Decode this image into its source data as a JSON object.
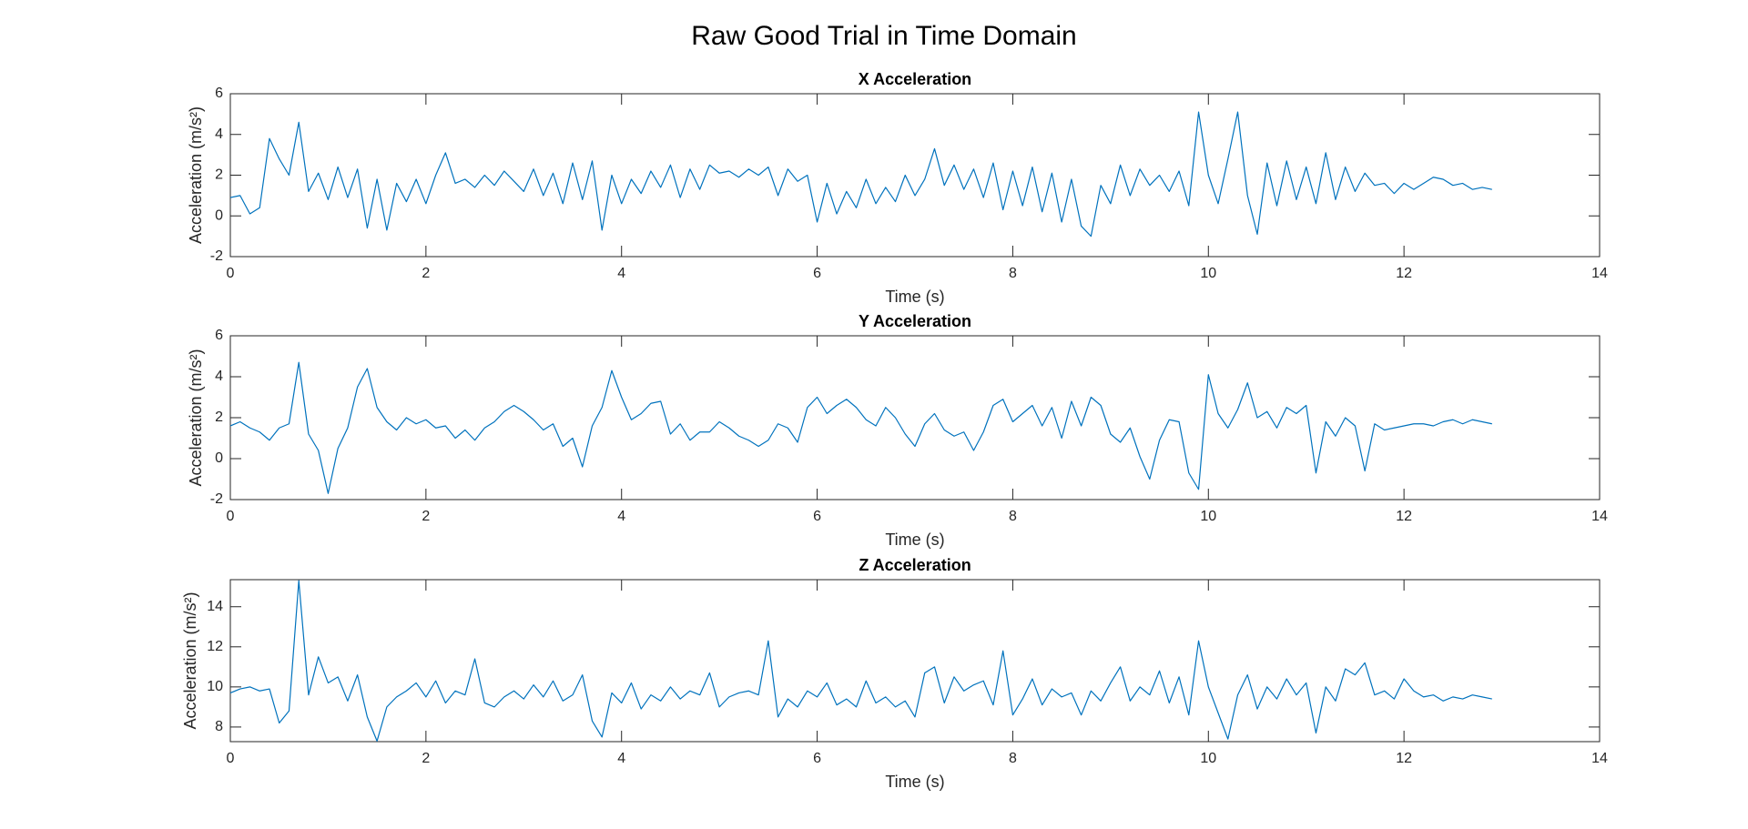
{
  "title": "Raw Good Trial in Time Domain",
  "chart_data": [
    {
      "type": "line",
      "title": "X Acceleration",
      "xlabel": "Time (s)",
      "ylabel": "Acceleration (m/s²)",
      "xlim": [
        0,
        14
      ],
      "xticks": [
        0,
        2,
        4,
        6,
        8,
        10,
        12,
        14
      ],
      "ylim": [
        -2,
        6
      ],
      "yticks": [
        -2,
        0,
        2,
        4,
        6
      ],
      "x": [
        0,
        0.1,
        0.2,
        0.3,
        0.4,
        0.5,
        0.6,
        0.7,
        0.8,
        0.9,
        1,
        1.1,
        1.2,
        1.3,
        1.4,
        1.5,
        1.6,
        1.7,
        1.8,
        1.9,
        2,
        2.1,
        2.2,
        2.3,
        2.4,
        2.5,
        2.6,
        2.7,
        2.8,
        2.9,
        3,
        3.1,
        3.2,
        3.3,
        3.4,
        3.5,
        3.6,
        3.7,
        3.8,
        3.9,
        4,
        4.1,
        4.2,
        4.3,
        4.4,
        4.5,
        4.6,
        4.7,
        4.8,
        4.9,
        5,
        5.1,
        5.2,
        5.3,
        5.4,
        5.5,
        5.6,
        5.7,
        5.8,
        5.9,
        6,
        6.1,
        6.2,
        6.3,
        6.4,
        6.5,
        6.6,
        6.7,
        6.8,
        6.9,
        7,
        7.1,
        7.2,
        7.3,
        7.4,
        7.5,
        7.6,
        7.7,
        7.8,
        7.9,
        8,
        8.1,
        8.2,
        8.3,
        8.4,
        8.5,
        8.6,
        8.7,
        8.8,
        8.9,
        9,
        9.1,
        9.2,
        9.3,
        9.4,
        9.5,
        9.6,
        9.7,
        9.8,
        9.9,
        10,
        10.1,
        10.2,
        10.3,
        10.4,
        10.5,
        10.6,
        10.7,
        10.8,
        10.9,
        11,
        11.1,
        11.2,
        11.3,
        11.4,
        11.5,
        11.6,
        11.7,
        11.8,
        11.9,
        12,
        12.1,
        12.2,
        12.3,
        12.4,
        12.5,
        12.6,
        12.7,
        12.8,
        12.9
      ],
      "series": [
        {
          "color": "#0072bd",
          "values": [
            0.9,
            1.0,
            0.1,
            0.4,
            3.8,
            2.8,
            2.0,
            4.6,
            1.2,
            2.1,
            0.8,
            2.4,
            0.9,
            2.3,
            -0.6,
            1.8,
            -0.7,
            1.6,
            0.7,
            1.8,
            0.6,
            2.0,
            3.1,
            1.6,
            1.8,
            1.4,
            2.0,
            1.5,
            2.2,
            1.7,
            1.2,
            2.3,
            1.0,
            2.1,
            0.6,
            2.6,
            0.8,
            2.7,
            -0.7,
            2.0,
            0.6,
            1.8,
            1.1,
            2.2,
            1.4,
            2.5,
            0.9,
            2.3,
            1.3,
            2.5,
            2.1,
            2.2,
            1.9,
            2.3,
            2.0,
            2.4,
            1.0,
            2.3,
            1.7,
            2.0,
            -0.3,
            1.6,
            0.1,
            1.2,
            0.4,
            1.8,
            0.6,
            1.4,
            0.7,
            2.0,
            1.0,
            1.8,
            3.3,
            1.5,
            2.5,
            1.3,
            2.3,
            0.9,
            2.6,
            0.3,
            2.2,
            0.5,
            2.4,
            0.2,
            2.1,
            -0.3,
            1.8,
            -0.5,
            -1.0,
            1.5,
            0.6,
            2.5,
            1.0,
            2.3,
            1.5,
            2.0,
            1.2,
            2.2,
            0.5,
            5.1,
            2.0,
            0.6,
            2.8,
            5.1,
            1.0,
            -0.9,
            2.6,
            0.5,
            2.7,
            0.8,
            2.4,
            0.6,
            3.1,
            0.8,
            2.4,
            1.2,
            2.1,
            1.5,
            1.6,
            1.1,
            1.6,
            1.3,
            1.6,
            1.9,
            1.8,
            1.5,
            1.6,
            1.3,
            1.4,
            1.3
          ]
        }
      ]
    },
    {
      "type": "line",
      "title": "Y Acceleration",
      "xlabel": "Time (s)",
      "ylabel": "Acceleration (m/s²)",
      "xlim": [
        0,
        14
      ],
      "xticks": [
        0,
        2,
        4,
        6,
        8,
        10,
        12,
        14
      ],
      "ylim": [
        -2,
        6
      ],
      "yticks": [
        -2,
        0,
        2,
        4,
        6
      ],
      "x": [
        0,
        0.1,
        0.2,
        0.3,
        0.4,
        0.5,
        0.6,
        0.7,
        0.8,
        0.9,
        1,
        1.1,
        1.2,
        1.3,
        1.4,
        1.5,
        1.6,
        1.7,
        1.8,
        1.9,
        2,
        2.1,
        2.2,
        2.3,
        2.4,
        2.5,
        2.6,
        2.7,
        2.8,
        2.9,
        3,
        3.1,
        3.2,
        3.3,
        3.4,
        3.5,
        3.6,
        3.7,
        3.8,
        3.9,
        4,
        4.1,
        4.2,
        4.3,
        4.4,
        4.5,
        4.6,
        4.7,
        4.8,
        4.9,
        5,
        5.1,
        5.2,
        5.3,
        5.4,
        5.5,
        5.6,
        5.7,
        5.8,
        5.9,
        6,
        6.1,
        6.2,
        6.3,
        6.4,
        6.5,
        6.6,
        6.7,
        6.8,
        6.9,
        7,
        7.1,
        7.2,
        7.3,
        7.4,
        7.5,
        7.6,
        7.7,
        7.8,
        7.9,
        8,
        8.1,
        8.2,
        8.3,
        8.4,
        8.5,
        8.6,
        8.7,
        8.8,
        8.9,
        9,
        9.1,
        9.2,
        9.3,
        9.4,
        9.5,
        9.6,
        9.7,
        9.8,
        9.9,
        10,
        10.1,
        10.2,
        10.3,
        10.4,
        10.5,
        10.6,
        10.7,
        10.8,
        10.9,
        11,
        11.1,
        11.2,
        11.3,
        11.4,
        11.5,
        11.6,
        11.7,
        11.8,
        11.9,
        12,
        12.1,
        12.2,
        12.3,
        12.4,
        12.5,
        12.6,
        12.7,
        12.8,
        12.9
      ],
      "series": [
        {
          "color": "#0072bd",
          "values": [
            1.6,
            1.8,
            1.5,
            1.3,
            0.9,
            1.5,
            1.7,
            4.7,
            1.2,
            0.4,
            -1.7,
            0.5,
            1.5,
            3.5,
            4.4,
            2.5,
            1.8,
            1.4,
            2.0,
            1.7,
            1.9,
            1.5,
            1.6,
            1.0,
            1.4,
            0.9,
            1.5,
            1.8,
            2.3,
            2.6,
            2.3,
            1.9,
            1.4,
            1.7,
            0.6,
            1.0,
            -0.4,
            1.6,
            2.5,
            4.3,
            3.0,
            1.9,
            2.2,
            2.7,
            2.8,
            1.2,
            1.7,
            0.9,
            1.3,
            1.3,
            1.8,
            1.5,
            1.1,
            0.9,
            0.6,
            0.9,
            1.7,
            1.5,
            0.8,
            2.5,
            3.0,
            2.2,
            2.6,
            2.9,
            2.5,
            1.9,
            1.6,
            2.5,
            2.0,
            1.2,
            0.6,
            1.7,
            2.2,
            1.4,
            1.1,
            1.3,
            0.4,
            1.3,
            2.6,
            2.9,
            1.8,
            2.2,
            2.6,
            1.6,
            2.5,
            1.0,
            2.8,
            1.6,
            3.0,
            2.6,
            1.2,
            0.8,
            1.5,
            0.1,
            -1.0,
            0.9,
            1.9,
            1.8,
            -0.7,
            -1.5,
            4.1,
            2.2,
            1.5,
            2.4,
            3.7,
            2.0,
            2.3,
            1.5,
            2.5,
            2.2,
            2.6,
            -0.7,
            1.8,
            1.1,
            2.0,
            1.6,
            -0.6,
            1.7,
            1.4,
            1.5,
            1.6,
            1.7,
            1.7,
            1.6,
            1.8,
            1.9,
            1.7,
            1.9,
            1.8,
            1.7
          ]
        }
      ]
    },
    {
      "type": "line",
      "title": "Z Acceleration",
      "xlabel": "Time (s)",
      "ylabel": "Acceleration (m/s²)",
      "xlim": [
        0,
        14
      ],
      "xticks": [
        0,
        2,
        4,
        6,
        8,
        10,
        12,
        14
      ],
      "ylim": [
        7.27,
        15.35
      ],
      "yticks": [
        8,
        10,
        12,
        14
      ],
      "x": [
        0,
        0.1,
        0.2,
        0.3,
        0.4,
        0.5,
        0.6,
        0.7,
        0.8,
        0.9,
        1,
        1.1,
        1.2,
        1.3,
        1.4,
        1.5,
        1.6,
        1.7,
        1.8,
        1.9,
        2,
        2.1,
        2.2,
        2.3,
        2.4,
        2.5,
        2.6,
        2.7,
        2.8,
        2.9,
        3,
        3.1,
        3.2,
        3.3,
        3.4,
        3.5,
        3.6,
        3.7,
        3.8,
        3.9,
        4,
        4.1,
        4.2,
        4.3,
        4.4,
        4.5,
        4.6,
        4.7,
        4.8,
        4.9,
        5,
        5.1,
        5.2,
        5.3,
        5.4,
        5.5,
        5.6,
        5.7,
        5.8,
        5.9,
        6,
        6.1,
        6.2,
        6.3,
        6.4,
        6.5,
        6.6,
        6.7,
        6.8,
        6.9,
        7,
        7.1,
        7.2,
        7.3,
        7.4,
        7.5,
        7.6,
        7.7,
        7.8,
        7.9,
        8,
        8.1,
        8.2,
        8.3,
        8.4,
        8.5,
        8.6,
        8.7,
        8.8,
        8.9,
        9,
        9.1,
        9.2,
        9.3,
        9.4,
        9.5,
        9.6,
        9.7,
        9.8,
        9.9,
        10,
        10.1,
        10.2,
        10.3,
        10.4,
        10.5,
        10.6,
        10.7,
        10.8,
        10.9,
        11,
        11.1,
        11.2,
        11.3,
        11.4,
        11.5,
        11.6,
        11.7,
        11.8,
        11.9,
        12,
        12.1,
        12.2,
        12.3,
        12.4,
        12.5,
        12.6,
        12.7,
        12.8,
        12.9
      ],
      "series": [
        {
          "color": "#0072bd",
          "values": [
            9.7,
            9.9,
            10.0,
            9.8,
            9.9,
            8.2,
            8.8,
            15.3,
            9.6,
            11.5,
            10.2,
            10.5,
            9.3,
            10.6,
            8.5,
            7.3,
            9.0,
            9.5,
            9.8,
            10.2,
            9.5,
            10.3,
            9.2,
            9.8,
            9.6,
            11.4,
            9.2,
            9.0,
            9.5,
            9.8,
            9.4,
            10.1,
            9.5,
            10.3,
            9.3,
            9.6,
            10.6,
            8.3,
            7.5,
            9.7,
            9.2,
            10.2,
            8.9,
            9.6,
            9.3,
            10.0,
            9.4,
            9.8,
            9.6,
            10.7,
            9.0,
            9.5,
            9.7,
            9.8,
            9.6,
            12.3,
            8.5,
            9.4,
            9.0,
            9.8,
            9.5,
            10.2,
            9.1,
            9.4,
            9.0,
            10.3,
            9.2,
            9.5,
            9.0,
            9.3,
            8.5,
            10.7,
            11.0,
            9.2,
            10.5,
            9.8,
            10.1,
            10.3,
            9.1,
            11.8,
            8.6,
            9.4,
            10.4,
            9.1,
            9.9,
            9.5,
            9.7,
            8.6,
            9.8,
            9.3,
            10.2,
            11.0,
            9.3,
            10.0,
            9.6,
            10.8,
            9.2,
            10.5,
            8.6,
            12.3,
            10.0,
            8.7,
            7.4,
            9.6,
            10.6,
            8.9,
            10.0,
            9.4,
            10.4,
            9.6,
            10.2,
            7.7,
            10.0,
            9.3,
            10.9,
            10.6,
            11.2,
            9.6,
            9.8,
            9.4,
            10.4,
            9.8,
            9.5,
            9.6,
            9.3,
            9.5,
            9.4,
            9.6,
            9.5,
            9.4
          ]
        }
      ]
    }
  ]
}
